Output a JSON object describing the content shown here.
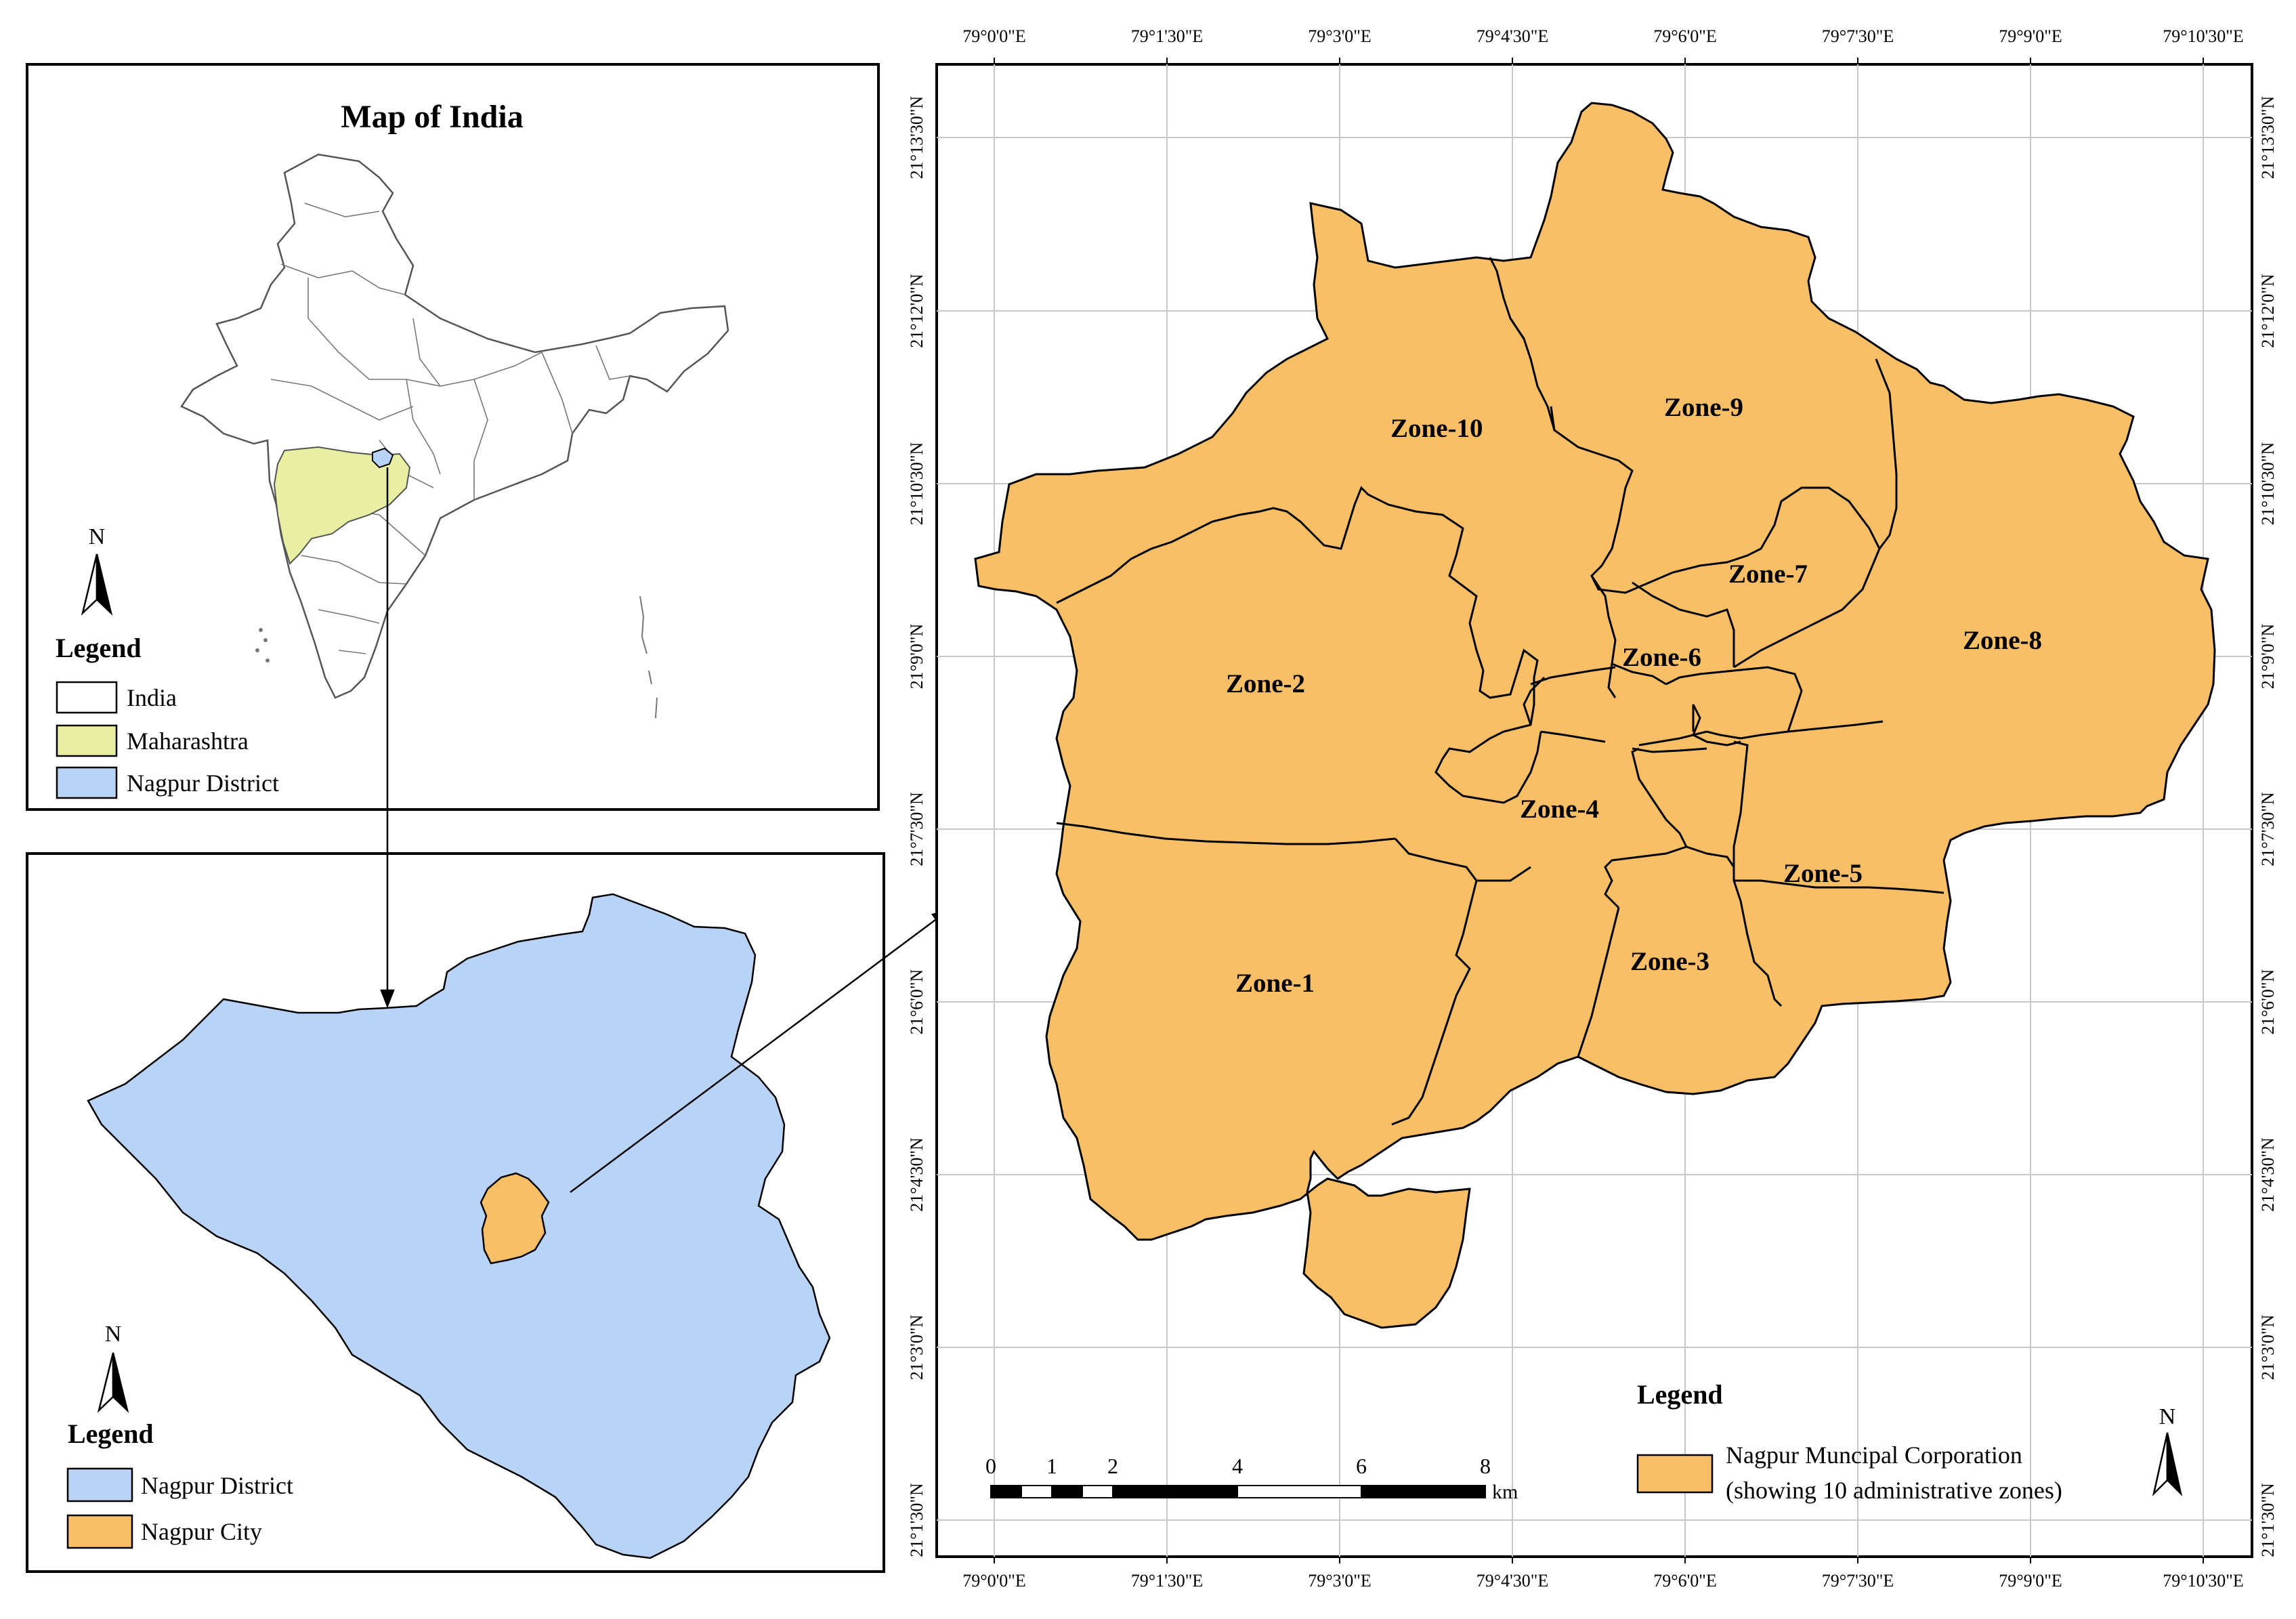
{
  "india_panel": {
    "title": "Map of India",
    "north": "N",
    "legend": {
      "title": "Legend",
      "items": [
        {
          "label": "India",
          "color": "#ffffff"
        },
        {
          "label": "Maharashtra",
          "color": "#e8eea2"
        },
        {
          "label": "Nagpur District",
          "color": "#b9d3f7"
        }
      ]
    }
  },
  "district_panel": {
    "north": "N",
    "legend": {
      "title": "Legend",
      "items": [
        {
          "label": "Nagpur District",
          "color": "#b9d3f7"
        },
        {
          "label": "Nagpur City",
          "color": "#f9bf66"
        }
      ]
    }
  },
  "city_panel": {
    "zones": [
      "Zone-1",
      "Zone-2",
      "Zone-3",
      "Zone-4",
      "Zone-5",
      "Zone-6",
      "Zone-7",
      "Zone-8",
      "Zone-9",
      "Zone-10"
    ],
    "longitude_labels": [
      "79°0'0\"E",
      "79°1'30\"E",
      "79°3'0\"E",
      "79°4'30\"E",
      "79°6'0\"E",
      "79°7'30\"E",
      "79°9'0\"E",
      "79°10'30\"E"
    ],
    "latitude_labels": [
      "21°13'30\"N",
      "21°12'0\"N",
      "21°10'30\"N",
      "21°9'0\"N",
      "21°7'30\"N",
      "21°6'0\"N",
      "21°4'30\"N",
      "21°3'0\"N",
      "21°1'30\"N"
    ],
    "scale": {
      "ticks": [
        "0",
        "1",
        "2",
        "4",
        "6",
        "8"
      ],
      "unit": "km"
    },
    "north": "N",
    "legend": {
      "title": "Legend",
      "item_line1": "Nagpur Muncipal Corporation",
      "item_line2": "(showing 10 administrative zones)",
      "color": "#f9bf66"
    }
  },
  "colors": {
    "zone_fill": "#f9bf66",
    "district_fill": "#b9d3f7",
    "maharashtra_fill": "#e8eea2",
    "grid": "#c8c8c8"
  }
}
